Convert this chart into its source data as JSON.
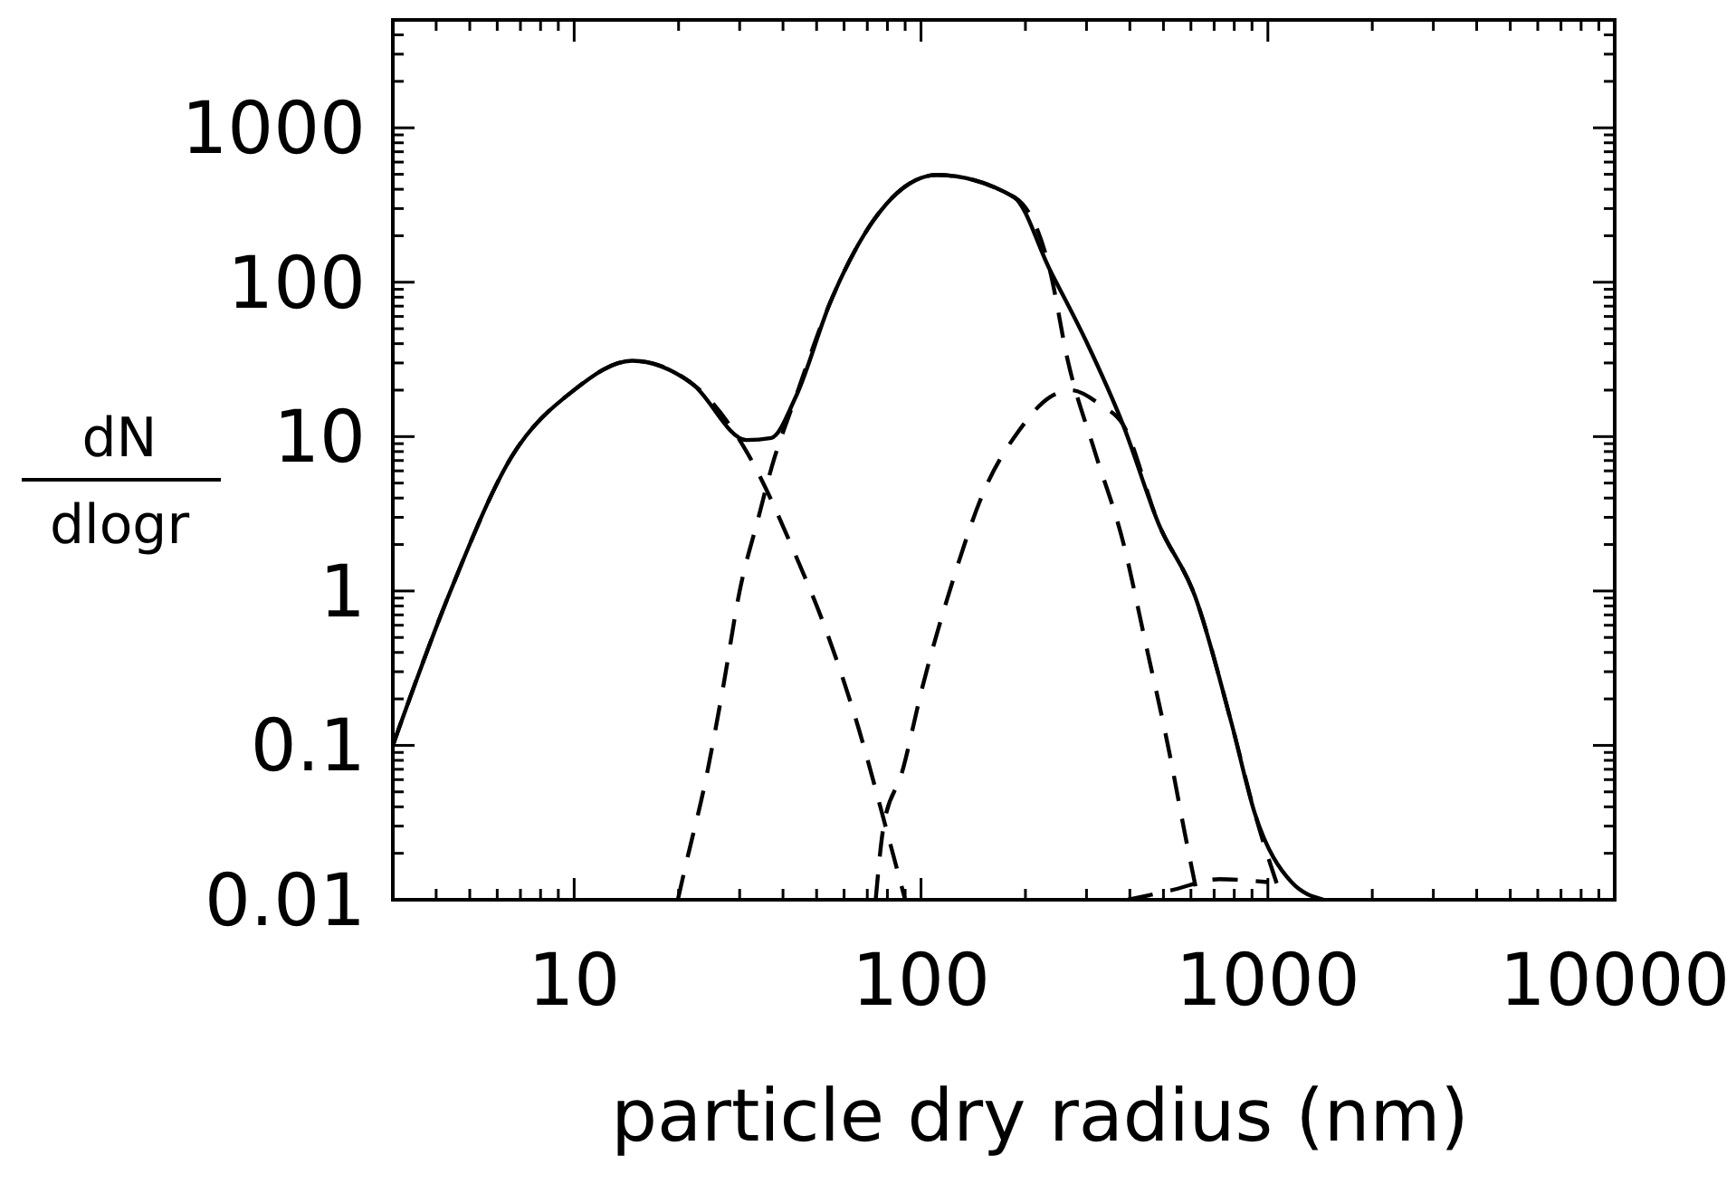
{
  "chart_data": {
    "type": "line",
    "xlabel": "particle dry radius (nm)",
    "ylabel": "dN dlogr",
    "log": "xy",
    "grid": false,
    "xlim": [
      3,
      10000
    ],
    "ylim": [
      0.01,
      5000
    ],
    "xticks": [
      {
        "value": 4,
        "label": null
      },
      {
        "value": 5,
        "label": null
      },
      {
        "value": 6,
        "label": null
      },
      {
        "value": 7,
        "label": null
      },
      {
        "value": 8,
        "label": null
      },
      {
        "value": 9,
        "label": null
      },
      10,
      {
        "value": 20,
        "label": null
      },
      {
        "value": 30,
        "label": null
      },
      {
        "value": 40,
        "label": null
      },
      {
        "value": 50,
        "label": null
      },
      {
        "value": 60,
        "label": null
      },
      {
        "value": 70,
        "label": null
      },
      {
        "value": 80,
        "label": null
      },
      {
        "value": 90,
        "label": null
      },
      100,
      {
        "value": 200,
        "label": null
      },
      {
        "value": 300,
        "label": null
      },
      {
        "value": 400,
        "label": null
      },
      {
        "value": 500,
        "label": null
      },
      {
        "value": 600,
        "label": null
      },
      {
        "value": 700,
        "label": null
      },
      {
        "value": 800,
        "label": null
      },
      {
        "value": 900,
        "label": null
      },
      1000,
      {
        "value": 2000,
        "label": null
      },
      {
        "value": 3000,
        "label": null
      },
      {
        "value": 4000,
        "label": null
      },
      {
        "value": 5000,
        "label": null
      },
      {
        "value": 6000,
        "label": null
      },
      {
        "value": 7000,
        "label": null
      },
      {
        "value": 8000,
        "label": null
      },
      {
        "value": 9000,
        "label": null
      },
      10000
    ],
    "yticks": [
      0.01,
      {
        "value": 0.02,
        "label": null
      },
      {
        "value": 0.03,
        "label": null
      },
      {
        "value": 0.04,
        "label": null
      },
      {
        "value": 0.05,
        "label": null
      },
      {
        "value": 0.06,
        "label": null
      },
      {
        "value": 0.07,
        "label": null
      },
      {
        "value": 0.08,
        "label": null
      },
      {
        "value": 0.09,
        "label": null
      },
      0.1,
      {
        "value": 0.2,
        "label": null
      },
      {
        "value": 0.3,
        "label": null
      },
      {
        "value": 0.4,
        "label": null
      },
      {
        "value": 0.5,
        "label": null
      },
      {
        "value": 0.6,
        "label": null
      },
      {
        "value": 0.7,
        "label": null
      },
      {
        "value": 0.8,
        "label": null
      },
      {
        "value": 0.9,
        "label": null
      },
      1,
      {
        "value": 2,
        "label": null
      },
      {
        "value": 3,
        "label": null
      },
      {
        "value": 4,
        "label": null
      },
      {
        "value": 5,
        "label": null
      },
      {
        "value": 6,
        "label": null
      },
      {
        "value": 7,
        "label": null
      },
      {
        "value": 8,
        "label": null
      },
      {
        "value": 9,
        "label": null
      },
      10,
      {
        "value": 20,
        "label": null
      },
      {
        "value": 30,
        "label": null
      },
      {
        "value": 40,
        "label": null
      },
      {
        "value": 50,
        "label": null
      },
      {
        "value": 60,
        "label": null
      },
      {
        "value": 70,
        "label": null
      },
      {
        "value": 80,
        "label": null
      },
      {
        "value": 90,
        "label": null
      },
      100,
      {
        "value": 200,
        "label": null
      },
      {
        "value": 300,
        "label": null
      },
      {
        "value": 400,
        "label": null
      },
      {
        "value": 500,
        "label": null
      },
      {
        "value": 600,
        "label": null
      },
      {
        "value": 700,
        "label": null
      },
      {
        "value": 800,
        "label": null
      },
      {
        "value": 900,
        "label": null
      },
      1000,
      {
        "value": 2000,
        "label": null
      },
      {
        "value": 3000,
        "label": null
      },
      {
        "value": 4000,
        "label": null
      },
      {
        "value": 5000,
        "label": null
      }
    ],
    "series": [
      {
        "color": "#000000",
        "line_style": "solid",
        "x": [
          3,
          4.4,
          6.6,
          9.9,
          14.7,
          21.9,
          31.4,
          37,
          43.5,
          55,
          73,
          111,
          185,
          235,
          300,
          382,
          485,
          617,
          785,
          918,
          1170,
          1450
        ],
        "values": [
          0.1,
          1,
          7.4,
          19.7,
          31,
          22,
          9.5,
          9.8,
          18,
          76,
          252,
          495,
          357,
          121,
          41,
          12,
          2.7,
          0.92,
          0.14,
          0.036,
          0.013,
          0.01
        ]
      },
      {
        "color": "#000000",
        "line_style": "dashed",
        "x": [
          3,
          4.4,
          6.6,
          9.9,
          14.7,
          21.9,
          31.4,
          43.5,
          53.5,
          66,
          79,
          90
        ],
        "values": [
          0.1,
          1,
          7.4,
          19.7,
          31,
          22,
          8,
          1.7,
          0.54,
          0.13,
          0.03,
          0.01
        ]
      },
      {
        "color": "#000000",
        "line_style": "dashed",
        "x": [
          19.9,
          21,
          23.8,
          26.9,
          30,
          34,
          37,
          43.5,
          55,
          73,
          111,
          185,
          235,
          265,
          317,
          382,
          445,
          515,
          580,
          630
        ],
        "values": [
          0.01,
          0.017,
          0.056,
          0.24,
          1,
          3,
          6.2,
          18,
          76,
          252,
          495,
          357,
          121,
          31,
          8,
          2.1,
          0.45,
          0.1,
          0.025,
          0.01
        ]
      },
      {
        "color": "#000000",
        "line_style": "dashed",
        "x": [
          74,
          78,
          88,
          101,
          124,
          151,
          192,
          235,
          270,
          330,
          382,
          485,
          617,
          785,
          918,
          1100
        ],
        "values": [
          0.01,
          0.03,
          0.066,
          0.24,
          1.2,
          4.3,
          11,
          18,
          20,
          16,
          12,
          2.7,
          0.92,
          0.14,
          0.036,
          0.01
        ]
      },
      {
        "color": "#000000",
        "line_style": "dashed",
        "x": [
          395,
          525,
          725,
          1000
        ],
        "values": [
          0.01,
          0.0115,
          0.0136,
          0.013
        ]
      }
    ]
  }
}
